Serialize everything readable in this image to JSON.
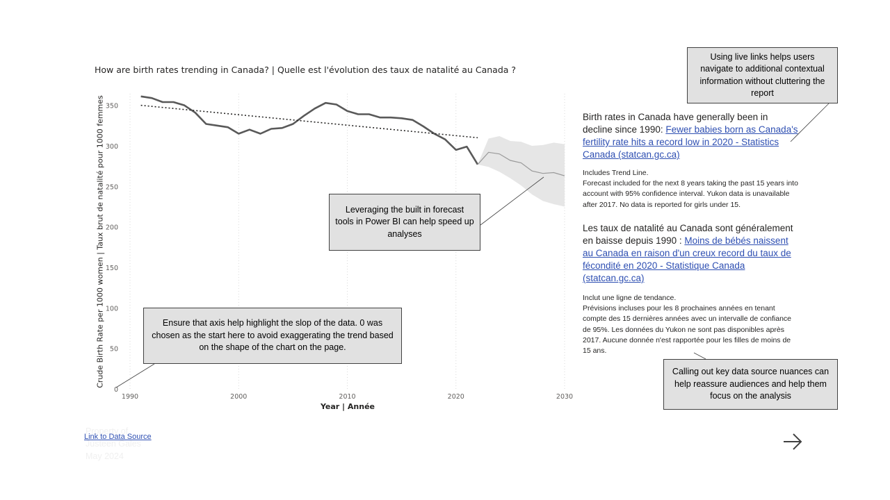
{
  "chart_data": {
    "type": "line",
    "title": "How are birth rates trending in Canada? | Quelle est l'évolution des taux de natalité au Canada ?",
    "xlabel": "Year | Année",
    "ylabel": "Crude Birth Rate per 1000 women | Taux brut de natalité pour 1000 femmes",
    "xlim": [
      1988,
      2030
    ],
    "ylim": [
      0,
      360
    ],
    "x_ticks": [
      1990,
      2000,
      2010,
      2020,
      2030
    ],
    "y_ticks": [
      0,
      50,
      100,
      150,
      200,
      250,
      300,
      350
    ],
    "grid": "vertical dotted",
    "series": [
      {
        "role": "actual",
        "color": "#595959",
        "x": [
          1991,
          1992,
          1993,
          1994,
          1995,
          1996,
          1997,
          1998,
          1999,
          2000,
          2001,
          2002,
          2003,
          2004,
          2005,
          2006,
          2007,
          2008,
          2009,
          2010,
          2011,
          2012,
          2013,
          2014,
          2015,
          2016,
          2017,
          2018,
          2019,
          2020,
          2021,
          2022
        ],
        "y": [
          361,
          359,
          354,
          354,
          350,
          341,
          327,
          325,
          323,
          315,
          320,
          315,
          321,
          322,
          327,
          337,
          346,
          353,
          351,
          343,
          339,
          339,
          335,
          335,
          334,
          332,
          324,
          315,
          308,
          295,
          299,
          277
        ]
      },
      {
        "role": "trend",
        "color": "#252423",
        "x": [
          1991,
          2022
        ],
        "y": [
          350,
          310
        ]
      },
      {
        "role": "forecast",
        "color": "#999999",
        "x": [
          2022,
          2023,
          2024,
          2025,
          2026,
          2027,
          2028,
          2029,
          2030
        ],
        "y": [
          277,
          292,
          290,
          282,
          279,
          269,
          266,
          267,
          263
        ],
        "upper": [
          277,
          309,
          312,
          306,
          305,
          300,
          301,
          304,
          302
        ],
        "lower": [
          277,
          274,
          268,
          260,
          251,
          240,
          232,
          228,
          225
        ],
        "band_color": "#e6e6e6"
      }
    ]
  },
  "y_tick_labels": [
    "0",
    "50",
    "100",
    "150",
    "200",
    "250",
    "300",
    "350"
  ],
  "x_tick_labels": [
    "1990",
    "2000",
    "2010",
    "2020",
    "2030"
  ],
  "callouts": {
    "live_links": "Using live links helps users navigate to additional contextual information without cluttering the report",
    "forecast": "Leveraging the built in forecast tools in Power BI can help speed up analyses",
    "axis": "Ensure that axis help highlight the slop of the data. 0 was chosen as the start here to avoid exaggerating the trend based on the shape of the chart on the page.",
    "data_source": "Calling out key data source nuances can help reassure audiences and help them focus on the analysis"
  },
  "side_panel": {
    "en_lead": "Birth rates in Canada have generally been in decline since 1990: ",
    "en_link": "Fewer babies born as Canada's fertility rate hits a record low in 2020 - Statistics Canada (statcan.gc.ca)",
    "en_note": "Includes Trend Line.\nForecast included for the next 8 years taking the past 15 years into account with 95% confidence interval. Yukon data is unavailable after 2017. No data is reported for girls under 15.",
    "fr_lead": "Les taux de natalité au Canada sont généralement en baisse depuis 1990 : ",
    "fr_link": "Moins de bébés naissent au Canada en raison d'un creux record du taux de fécondité en 2020 - Statistique Canada (statcan.gc.ca)",
    "fr_note": "Inclut une ligne de tendance.\nPrévisions incluses pour les 8 prochaines années en tenant compte des 15 dernières années avec un intervalle de confiance de 95%. Les données du Yukon ne sont pas disponibles après 2017. Aucune donnée n'est rapportée pour les filles de moins de 15 ans."
  },
  "footer": {
    "property_text": "Property of\nJusteen Gales\nMay 2024",
    "data_link": "Link to Data Source",
    "next_icon": "arrow-right-icon"
  }
}
